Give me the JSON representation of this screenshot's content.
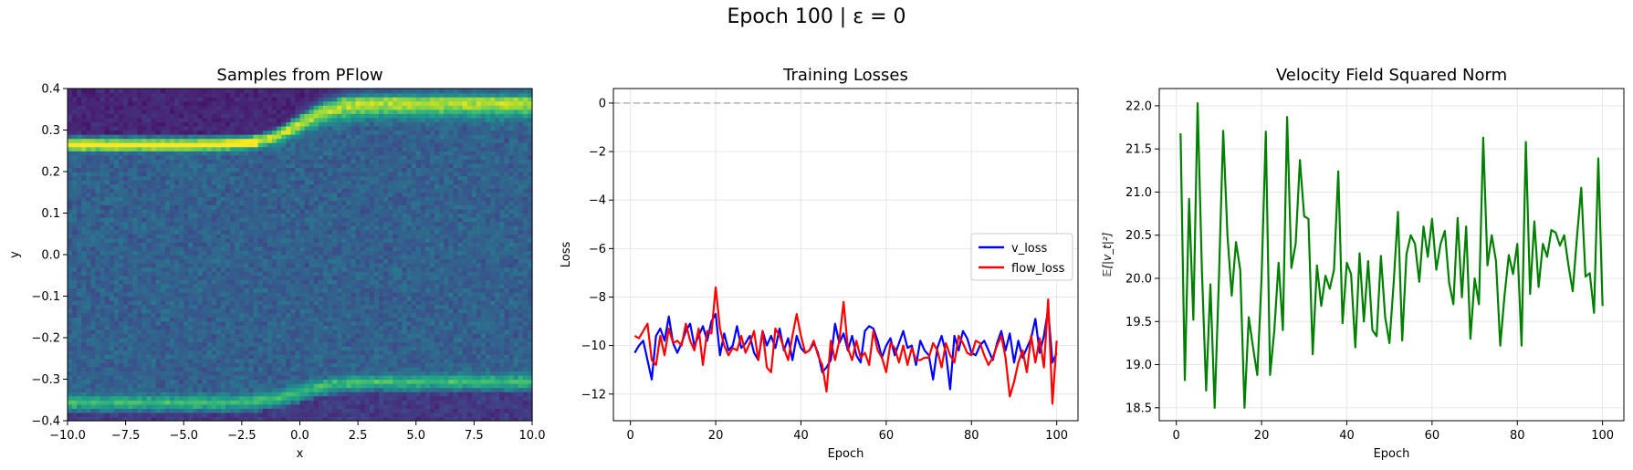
{
  "figure": {
    "suptitle": "Epoch 100 | ε = 0"
  },
  "chart_data": [
    {
      "type": "heatmap",
      "title": "Samples from PFlow",
      "xlabel": "x",
      "ylabel": "y",
      "xlim": [
        -10,
        10
      ],
      "ylim": [
        -0.4,
        0.4
      ],
      "xticks": [
        -10,
        -7.5,
        -5,
        -2.5,
        0,
        2.5,
        5,
        7.5,
        10
      ],
      "xtick_labels": [
        "−10.0",
        "−7.5",
        "−5.0",
        "−2.5",
        "0.0",
        "2.5",
        "5.0",
        "7.5",
        "10.0"
      ],
      "yticks": [
        -0.4,
        -0.3,
        -0.2,
        -0.1,
        0,
        0.1,
        0.2,
        0.3,
        0.4
      ],
      "ytick_labels": [
        "−0.4",
        "−0.3",
        "−0.2",
        "−0.1",
        "0.0",
        "0.1",
        "0.2",
        "0.3",
        "0.4"
      ],
      "colormap": "viridis",
      "grid": false,
      "bins": [
        100,
        80
      ],
      "density_description": {
        "upper_band": {
          "left_y": 0.265,
          "right_y": 0.365,
          "transition_x": 0,
          "brightest_x_range": [
            -9,
            -2
          ]
        },
        "lower_band": {
          "left_y": -0.355,
          "right_y": -0.305,
          "transition_x": 0
        }
      }
    },
    {
      "type": "line",
      "title": "Training Losses",
      "xlabel": "Epoch",
      "ylabel": "Loss",
      "xlim": [
        -4,
        105
      ],
      "ylim": [
        -13.1,
        0.6
      ],
      "xticks": [
        0,
        20,
        40,
        60,
        80,
        100
      ],
      "yticks": [
        0,
        -2,
        -4,
        -6,
        -8,
        -10,
        -12
      ],
      "ytick_labels": [
        "0",
        "−2",
        "−4",
        "−6",
        "−8",
        "−10",
        "−12"
      ],
      "grid": true,
      "legend": "center-right",
      "reference_line": {
        "y": 0,
        "style": "dashed",
        "color": "#aaaaaa"
      },
      "x": [
        1,
        2,
        3,
        4,
        5,
        6,
        7,
        8,
        9,
        10,
        11,
        12,
        13,
        14,
        15,
        16,
        17,
        18,
        19,
        20,
        21,
        22,
        23,
        24,
        25,
        26,
        27,
        28,
        29,
        30,
        31,
        32,
        33,
        34,
        35,
        36,
        37,
        38,
        39,
        40,
        41,
        42,
        43,
        44,
        45,
        46,
        47,
        48,
        49,
        50,
        51,
        52,
        53,
        54,
        55,
        56,
        57,
        58,
        59,
        60,
        61,
        62,
        63,
        64,
        65,
        66,
        67,
        68,
        69,
        70,
        71,
        72,
        73,
        74,
        75,
        76,
        77,
        78,
        79,
        80,
        81,
        82,
        83,
        84,
        85,
        86,
        87,
        88,
        89,
        90,
        91,
        92,
        93,
        94,
        95,
        96,
        97,
        98,
        99,
        100
      ],
      "series": [
        {
          "name": "v_loss",
          "color": "#0000ff",
          "values": [
            -10.3,
            -10.0,
            -9.8,
            -10.6,
            -11.4,
            -9.6,
            -9.3,
            -9.8,
            -8.8,
            -9.9,
            -10.3,
            -9.9,
            -9.4,
            -9.1,
            -10.0,
            -9.6,
            -9.2,
            -9.8,
            -9.0,
            -8.7,
            -10.4,
            -9.5,
            -10.2,
            -10.0,
            -9.2,
            -10.1,
            -9.9,
            -9.6,
            -10.3,
            -10.6,
            -9.4,
            -10.0,
            -9.6,
            -10.1,
            -9.3,
            -10.2,
            -9.7,
            -10.6,
            -9.6,
            -10.1,
            -10.3,
            -10.2,
            -9.9,
            -10.3,
            -11.1,
            -10.9,
            -10.6,
            -9.1,
            -9.9,
            -9.5,
            -10.2,
            -9.6,
            -10.4,
            -10.7,
            -9.4,
            -9.2,
            -9.3,
            -9.8,
            -10.5,
            -10.0,
            -9.7,
            -10.4,
            -9.9,
            -9.4,
            -10.1,
            -10.0,
            -10.8,
            -9.8,
            -10.2,
            -10.4,
            -11.4,
            -10.1,
            -9.6,
            -10.3,
            -11.8,
            -9.6,
            -10.2,
            -9.4,
            -9.7,
            -10.3,
            -10.4,
            -10.0,
            -9.8,
            -10.2,
            -10.6,
            -9.9,
            -9.4,
            -10.2,
            -9.5,
            -10.7,
            -9.8,
            -10.5,
            -10.1,
            -9.7,
            -8.9,
            -10.3,
            -9.6,
            -8.5,
            -10.7,
            -10.3
          ]
        },
        {
          "name": "flow_loss",
          "color": "#ff0000",
          "values": [
            -9.6,
            -9.7,
            -9.4,
            -9.1,
            -10.6,
            -10.8,
            -9.6,
            -10.4,
            -9.3,
            -9.9,
            -9.8,
            -10.0,
            -9.1,
            -9.8,
            -10.2,
            -9.3,
            -10.8,
            -9.4,
            -9.5,
            -7.6,
            -9.3,
            -10.0,
            -10.4,
            -10.1,
            -10.2,
            -9.6,
            -10.3,
            -9.9,
            -9.4,
            -10.6,
            -9.4,
            -10.9,
            -11.1,
            -9.3,
            -9.6,
            -10.1,
            -10.6,
            -9.6,
            -8.7,
            -9.6,
            -10.3,
            -10.2,
            -9.8,
            -10.4,
            -10.8,
            -11.9,
            -9.8,
            -10.6,
            -9.8,
            -8.2,
            -10.1,
            -10.6,
            -9.8,
            -10.5,
            -10.3,
            -10.8,
            -9.4,
            -10.2,
            -10.5,
            -11.1,
            -9.9,
            -10.1,
            -10.7,
            -10.0,
            -10.8,
            -10.1,
            -10.6,
            -10.6,
            -10.5,
            -10.5,
            -9.9,
            -10.2,
            -10.9,
            -9.9,
            -10.4,
            -10.7,
            -9.6,
            -9.9,
            -10.3,
            -10.4,
            -9.8,
            -9.9,
            -10.4,
            -10.8,
            -10.5,
            -10.0,
            -9.6,
            -10.5,
            -12.1,
            -11.5,
            -10.7,
            -10.2,
            -11.1,
            -9.6,
            -10.7,
            -9.7,
            -10.9,
            -8.1,
            -12.4,
            -9.8
          ]
        }
      ]
    },
    {
      "type": "line",
      "title": "Velocity Field Squared Norm",
      "xlabel": "Epoch",
      "ylabel": "𝔼[|v_t|²]",
      "xlim": [
        -4,
        105
      ],
      "ylim": [
        18.35,
        22.2
      ],
      "xticks": [
        0,
        20,
        40,
        60,
        80,
        100
      ],
      "yticks": [
        18.5,
        19.0,
        19.5,
        20.0,
        20.5,
        21.0,
        21.5,
        22.0
      ],
      "ytick_labels": [
        "18.5",
        "19.0",
        "19.5",
        "20.0",
        "20.5",
        "21.0",
        "21.5",
        "22.0"
      ],
      "grid": true,
      "x": [
        1,
        2,
        3,
        4,
        5,
        6,
        7,
        8,
        9,
        10,
        11,
        12,
        13,
        14,
        15,
        16,
        17,
        18,
        19,
        20,
        21,
        22,
        23,
        24,
        25,
        26,
        27,
        28,
        29,
        30,
        31,
        32,
        33,
        34,
        35,
        36,
        37,
        38,
        39,
        40,
        41,
        42,
        43,
        44,
        45,
        46,
        47,
        48,
        49,
        50,
        51,
        52,
        53,
        54,
        55,
        56,
        57,
        58,
        59,
        60,
        61,
        62,
        63,
        64,
        65,
        66,
        67,
        68,
        69,
        70,
        71,
        72,
        73,
        74,
        75,
        76,
        77,
        78,
        79,
        80,
        81,
        82,
        83,
        84,
        85,
        86,
        87,
        88,
        89,
        90,
        91,
        92,
        93,
        94,
        95,
        96,
        97,
        98,
        99,
        100
      ],
      "series": [
        {
          "color": "#008000",
          "values": [
            21.68,
            18.82,
            20.92,
            19.52,
            22.03,
            20.1,
            18.7,
            19.93,
            18.5,
            20.0,
            21.71,
            20.5,
            19.8,
            20.42,
            20.1,
            18.5,
            19.55,
            19.2,
            18.88,
            20.0,
            21.7,
            18.88,
            19.4,
            20.18,
            19.4,
            21.87,
            20.12,
            20.4,
            21.37,
            20.72,
            20.69,
            19.12,
            20.15,
            19.68,
            20.03,
            19.88,
            20.1,
            21.24,
            19.48,
            20.18,
            20.05,
            19.2,
            20.29,
            19.5,
            20.2,
            19.4,
            19.33,
            20.26,
            19.55,
            19.25,
            19.95,
            20.77,
            19.28,
            20.28,
            20.5,
            20.4,
            19.96,
            20.6,
            20.25,
            20.69,
            20.1,
            20.4,
            20.55,
            19.95,
            19.7,
            20.7,
            19.78,
            20.6,
            19.3,
            20.0,
            19.7,
            21.63,
            20.15,
            20.5,
            20.2,
            19.22,
            19.8,
            20.27,
            20.05,
            20.4,
            19.22,
            21.58,
            19.82,
            20.66,
            19.9,
            20.4,
            20.25,
            20.56,
            20.53,
            20.38,
            20.5,
            20.15,
            19.85,
            20.48,
            21.05,
            20.02,
            20.06,
            19.6,
            21.39,
            19.68
          ]
        }
      ]
    }
  ]
}
